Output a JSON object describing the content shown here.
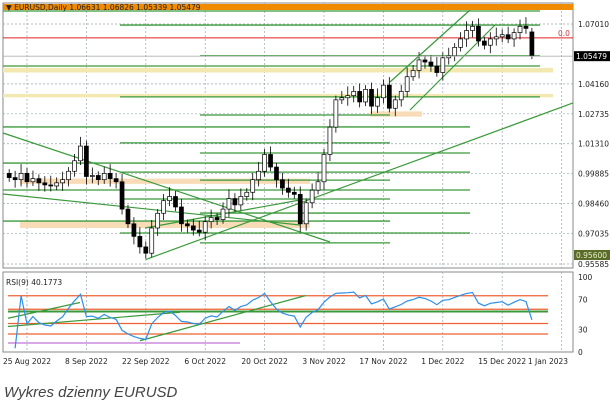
{
  "chart_data": {
    "type": "candlestick",
    "title": "EURUSD,Daily",
    "header_values": [
      "1.06631",
      "1.06826",
      "1.05339",
      "1.05479"
    ],
    "current_price_label": "1.05479",
    "price_axis_labels": [
      "1.07010",
      "1.04160",
      "1.02735",
      "1.01310",
      "0.99885",
      "0.98460",
      "0.97035",
      "0.95585"
    ],
    "highlighted_level_label": "0.95600",
    "fib_label": "0.0",
    "ylim": [
      0.955,
      1.0815
    ],
    "x_tick_labels": [
      "25 Aug 2022",
      "8 Sep 2022",
      "22 Sep 2022",
      "6 Oct 2022",
      "20 Oct 2022",
      "3 Nov 2022",
      "17 Nov 2022",
      "1 Dec 2022",
      "15 Dec 2022",
      "1 Jan 2023"
    ],
    "closes": [
      0.997,
      0.996,
      0.999,
      0.995,
      0.9965,
      0.9945,
      0.9935,
      0.993,
      0.9945,
      0.996,
      1.0,
      1.005,
      1.012,
      0.9975,
      0.998,
      0.996,
      0.999,
      0.9965,
      0.995,
      0.982,
      0.975,
      0.969,
      0.964,
      0.961,
      0.973,
      0.98,
      0.986,
      0.988,
      0.983,
      0.975,
      0.974,
      0.972,
      0.971,
      0.976,
      0.978,
      0.977,
      0.982,
      0.987,
      0.984,
      0.988,
      0.99,
      0.996,
      1.0,
      1.008,
      1.002,
      0.996,
      0.992,
      0.99,
      0.989,
      0.975,
      0.985,
      0.991,
      0.995,
      1.008,
      1.021,
      1.034,
      1.035,
      1.036,
      1.038,
      1.033,
      1.039,
      1.031,
      1.035,
      1.041,
      1.03,
      1.034,
      1.038,
      1.045,
      1.048,
      1.053,
      1.052,
      1.05,
      1.047,
      1.054,
      1.055,
      1.059,
      1.063,
      1.067,
      1.069,
      1.062,
      1.06,
      1.063,
      1.064,
      1.065,
      1.063,
      1.066,
      1.069,
      1.068,
      1.0663
    ],
    "last_candle": {
      "open": 1.06631,
      "high": 1.06826,
      "low": 1.05339,
      "close": 1.05479
    },
    "levels": {
      "orange": [
        1.0785
      ],
      "red": [
        1.0635
      ],
      "green": [
        1.0763,
        1.0696,
        1.055,
        1.0501,
        1.0354,
        1.0268,
        1.0211,
        1.0135,
        1.0087,
        1.0039,
        0.9996,
        0.9958,
        0.9911,
        0.9868,
        0.9801,
        0.9763,
        0.9706,
        0.9659
      ],
      "zones": [
        [
          1.047,
          1.0492
        ],
        [
          1.0352,
          1.0368
        ],
        [
          0.994,
          0.9965
        ],
        [
          0.973,
          0.976
        ],
        [
          1.026,
          1.0285
        ]
      ]
    },
    "rsi": {
      "label": "RSI(9) 40.1773",
      "axis_labels": [
        "100",
        "70",
        "30",
        "0"
      ],
      "levels_orange": [
        75,
        57,
        38,
        24
      ],
      "level_green": 54
    },
    "colors": {
      "bull": "#ffffff",
      "bear": "#000000",
      "level": "#3a9a3a",
      "orange": "#f08a00",
      "red": "#e02020",
      "zone": "#f8dcb8",
      "zone_yellow": "#f3e9b0",
      "rsi": "#2e8fe8"
    }
  },
  "caption": "Wykres dzienny EURUSD"
}
